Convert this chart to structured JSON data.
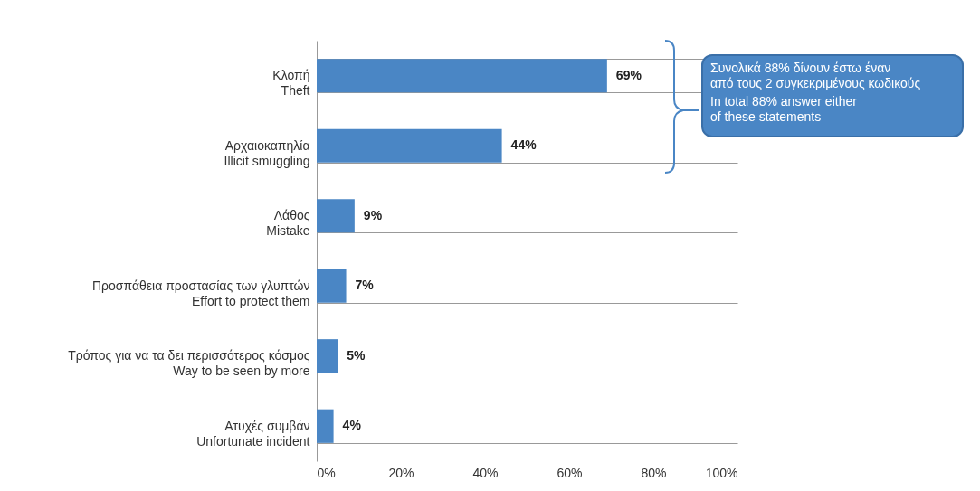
{
  "chart_data": {
    "type": "bar",
    "orientation": "horizontal",
    "categories": [
      "Κλοπή\nTheft",
      "Αρχαιοκαπηλία\nIllicit smuggling",
      "Λάθος\nMistake",
      "Προσπάθεια προστασίας των γλυπτών\nEffort to protect them",
      "Τρόπος για να τα δει περισσότερος κόσμος\nWay to be seen by more",
      "Ατυχές συμβάν\nUnfortunate incident"
    ],
    "values": [
      69,
      44,
      9,
      7,
      5,
      4
    ],
    "value_labels": [
      "69%",
      "44%",
      "9%",
      "7%",
      "5%",
      "4%"
    ],
    "color": "#4a86c5",
    "xlim": [
      0,
      100
    ],
    "xticks": [
      {
        "value": 0,
        "label": "0%"
      },
      {
        "value": 20,
        "label": "20%"
      },
      {
        "value": 40,
        "label": "40%"
      },
      {
        "value": 60,
        "label": "60%"
      },
      {
        "value": 80,
        "label": "80%"
      },
      {
        "value": 100,
        "label": "100%"
      }
    ],
    "grid": "y",
    "annotations": [
      "Συνολικά 88% δίνουν έστω έναν\nαπό τους 2 συγκεκριμένους κωδικούς",
      "In total 88% answer either\nof these statements"
    ]
  }
}
